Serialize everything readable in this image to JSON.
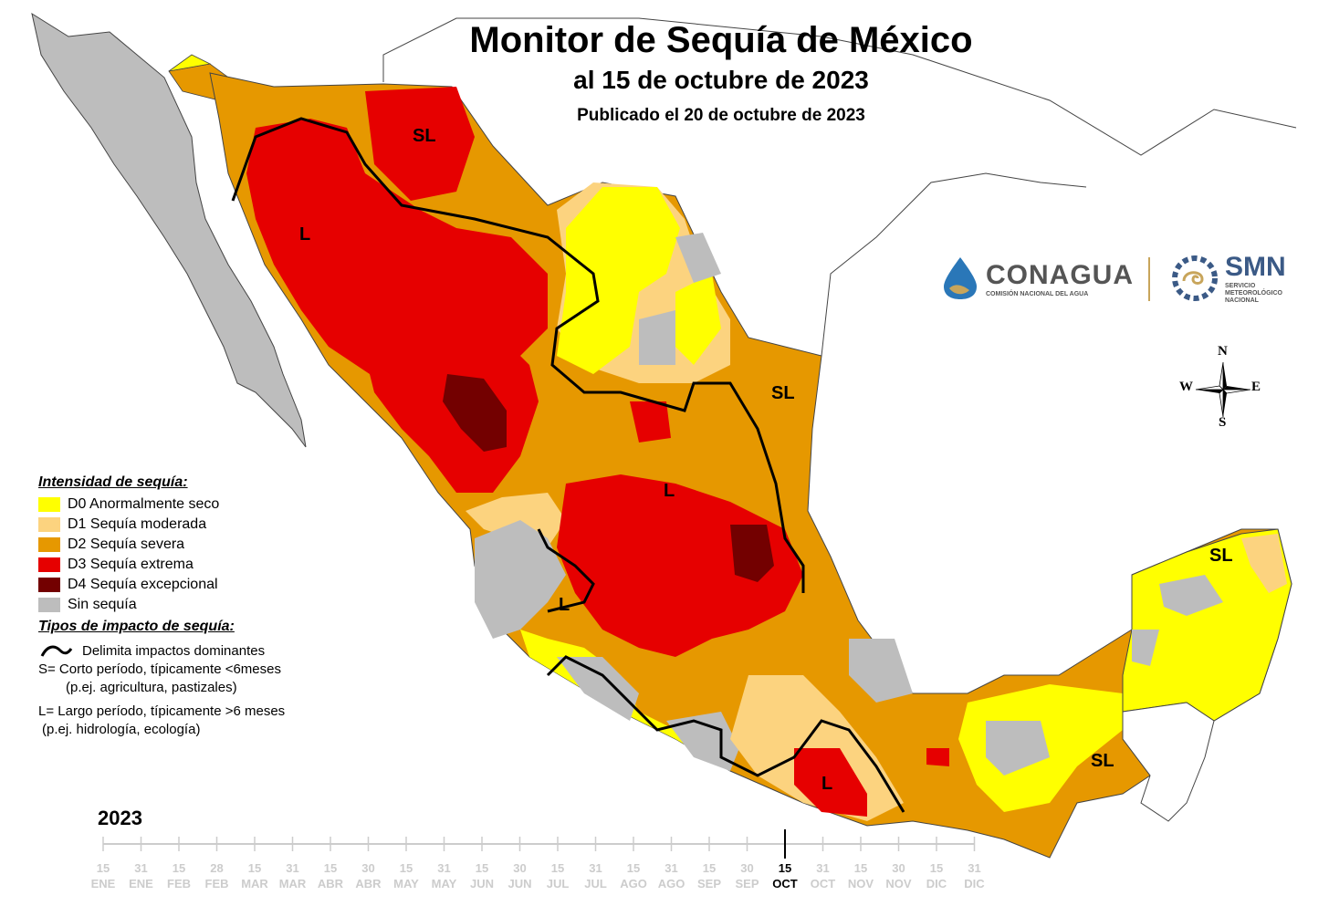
{
  "title": "Monitor de Sequía de México",
  "subtitle": "al 15 de octubre de 2023",
  "published": "Publicado el 20 de octubre de 2023",
  "legend": {
    "intensity_title": "Intensidad de sequía:",
    "items": [
      {
        "label": "D0 Anormalmente seco",
        "color": "#ffff00"
      },
      {
        "label": "D1 Sequía moderada",
        "color": "#fcd37f"
      },
      {
        "label": "D2 Sequía severa",
        "color": "#e69800"
      },
      {
        "label": "D3 Sequía extrema",
        "color": "#e60000"
      },
      {
        "label": "D4 Sequía excepcional",
        "color": "#730000"
      },
      {
        "label": "Sin sequía",
        "color": "#bdbdbd"
      }
    ],
    "impact_title": "Tipos de impacto de sequía:",
    "impact_line_label": "Delimita impactos dominantes",
    "impact_s": "S= Corto período, típicamente <6meses",
    "impact_s_example": "(p.ej. agricultura, pastizales)",
    "impact_l": "L= Largo período, típicamente >6 meses",
    "impact_l_example": "(p.ej. hidrología, ecología)"
  },
  "map_labels": [
    "SL",
    "L",
    "L",
    "SL",
    "L",
    "L",
    "SL",
    "SL"
  ],
  "logos": {
    "conagua": "CONAGUA",
    "conagua_sub": "COMISIÓN NACIONAL DEL AGUA",
    "smn": "SMN",
    "smn_sub1": "SERVICIO",
    "smn_sub2": "METEOROLÓGICO",
    "smn_sub3": "NACIONAL"
  },
  "compass": {
    "n": "N",
    "s": "S",
    "e": "E",
    "w": "W"
  },
  "timeline": {
    "year": "2023",
    "ticks": [
      {
        "day": "15",
        "month": "ENE"
      },
      {
        "day": "31",
        "month": "ENE"
      },
      {
        "day": "15",
        "month": "FEB"
      },
      {
        "day": "28",
        "month": "FEB"
      },
      {
        "day": "15",
        "month": "MAR"
      },
      {
        "day": "31",
        "month": "MAR"
      },
      {
        "day": "15",
        "month": "ABR"
      },
      {
        "day": "30",
        "month": "ABR"
      },
      {
        "day": "15",
        "month": "MAY"
      },
      {
        "day": "31",
        "month": "MAY"
      },
      {
        "day": "15",
        "month": "JUN"
      },
      {
        "day": "30",
        "month": "JUN"
      },
      {
        "day": "15",
        "month": "JUL"
      },
      {
        "day": "31",
        "month": "JUL"
      },
      {
        "day": "15",
        "month": "AGO"
      },
      {
        "day": "31",
        "month": "AGO"
      },
      {
        "day": "15",
        "month": "SEP"
      },
      {
        "day": "30",
        "month": "SEP"
      },
      {
        "day": "15",
        "month": "OCT"
      },
      {
        "day": "31",
        "month": "OCT"
      },
      {
        "day": "15",
        "month": "NOV"
      },
      {
        "day": "30",
        "month": "NOV"
      },
      {
        "day": "15",
        "month": "DIC"
      },
      {
        "day": "31",
        "month": "DIC"
      }
    ],
    "current_index": 18
  }
}
